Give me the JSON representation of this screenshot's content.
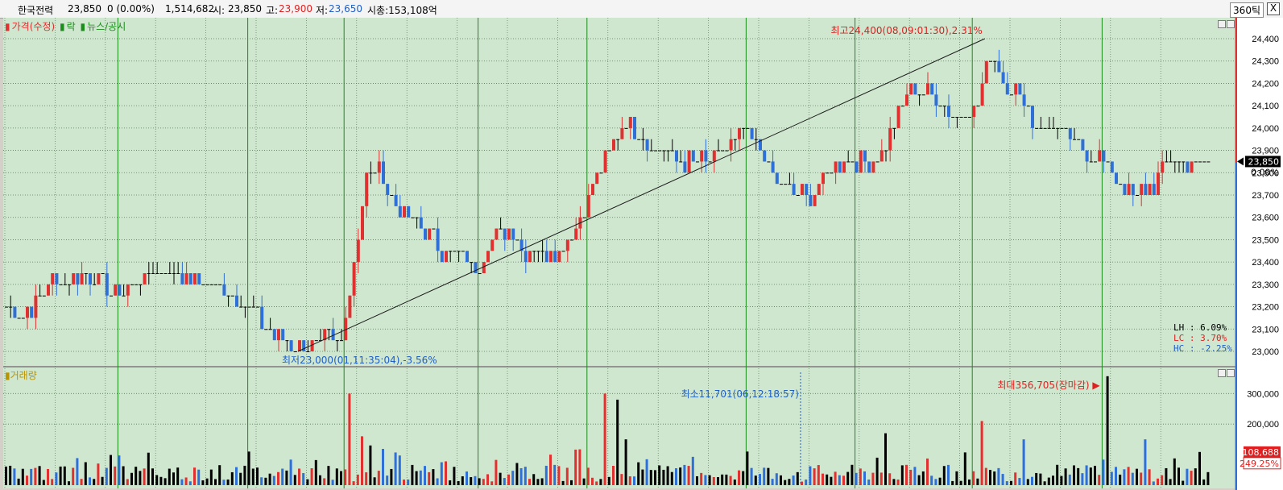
{
  "header": {
    "name": "한국전력",
    "price": "23,850",
    "change": "0 (0.00%)",
    "volume": "1,514,682",
    "open_label": "시:",
    "open": "23,850",
    "high_label": "고:",
    "high": "23,900",
    "low_label": "저:",
    "low": "23,650",
    "mcap": "시총:153,108억",
    "period": "360틱",
    "close_label": "X"
  },
  "legend": {
    "price": "가격(수정)",
    "rak": "락",
    "news": "뉴스/공시",
    "volume": "거래량"
  },
  "colors": {
    "background": "#cfe6cf",
    "up": "#e03030",
    "down": "#2e6fd8",
    "flat": "#000000",
    "session_line": "#1c8c1c",
    "axis_bg": "#ffffff"
  },
  "chart_data": [
    {
      "type": "candlestick",
      "title": "",
      "y_ticks": [
        "24,400",
        "24,300",
        "24,200",
        "24,100",
        "24,000",
        "23,900",
        "23,800",
        "23,700",
        "23,600",
        "23,500",
        "23,400",
        "23,300",
        "23,200",
        "23,100",
        "23,000"
      ],
      "ylim": [
        22950,
        24450
      ],
      "current_price": "23,850",
      "current_change": "0.00%",
      "session_starts": [
        27,
        58,
        81,
        113,
        139,
        177,
        203,
        231,
        262
      ],
      "annotations": {
        "high": "최고24,400(08,09:01:30),2.31%",
        "low": "최저23,000(01,11:35:04),-3.56%"
      },
      "trendline": {
        "from": [
          70,
          23000
        ],
        "to": [
          234,
          24400
        ]
      },
      "stats": {
        "lh": "LH :  6.09%",
        "lc": "LC :  3.70%",
        "hc": "HC : -2.25%"
      },
      "close_path": [
        [
          0,
          23200
        ],
        [
          4,
          23150
        ],
        [
          10,
          23300
        ],
        [
          18,
          23350
        ],
        [
          27,
          23250
        ],
        [
          34,
          23350
        ],
        [
          42,
          23350
        ],
        [
          50,
          23300
        ],
        [
          58,
          23200
        ],
        [
          62,
          23100
        ],
        [
          66,
          23050
        ],
        [
          72,
          23000
        ],
        [
          76,
          23050
        ],
        [
          80,
          23050
        ],
        [
          83,
          23400
        ],
        [
          86,
          23800
        ],
        [
          89,
          23800
        ],
        [
          92,
          23700
        ],
        [
          96,
          23600
        ],
        [
          100,
          23550
        ],
        [
          104,
          23450
        ],
        [
          108,
          23450
        ],
        [
          112,
          23350
        ],
        [
          116,
          23500
        ],
        [
          120,
          23550
        ],
        [
          124,
          23450
        ],
        [
          128,
          23450
        ],
        [
          132,
          23450
        ],
        [
          136,
          23550
        ],
        [
          140,
          23750
        ],
        [
          144,
          23900
        ],
        [
          148,
          24050
        ],
        [
          152,
          23950
        ],
        [
          156,
          23900
        ],
        [
          160,
          23850
        ],
        [
          164,
          23850
        ],
        [
          168,
          23850
        ],
        [
          172,
          23900
        ],
        [
          176,
          24000
        ],
        [
          180,
          23900
        ],
        [
          184,
          23750
        ],
        [
          188,
          23700
        ],
        [
          192,
          23700
        ],
        [
          196,
          23800
        ],
        [
          200,
          23850
        ],
        [
          204,
          23850
        ],
        [
          208,
          23850
        ],
        [
          212,
          24000
        ],
        [
          216,
          24200
        ],
        [
          220,
          24150
        ],
        [
          224,
          24100
        ],
        [
          228,
          24050
        ],
        [
          232,
          24100
        ],
        [
          235,
          24350
        ],
        [
          238,
          24200
        ],
        [
          242,
          24150
        ],
        [
          246,
          24000
        ],
        [
          250,
          24000
        ],
        [
          254,
          23950
        ],
        [
          258,
          23900
        ],
        [
          262,
          23850
        ],
        [
          266,
          23750
        ],
        [
          270,
          23700
        ],
        [
          274,
          23750
        ],
        [
          278,
          23850
        ],
        [
          282,
          23850
        ],
        [
          286,
          23850
        ]
      ]
    },
    {
      "type": "bar",
      "title": "",
      "y_ticks": [
        "300,000",
        "200,000"
      ],
      "ylim": [
        0,
        380000
      ],
      "current_volume": "108,688",
      "current_ratio": "249.25%",
      "annotations": {
        "max": "최대356,705(장마감) ▶",
        "min": "최소11,701(06,12:18:57)"
      },
      "max_index": 263,
      "min_index": 190,
      "spikes": [
        [
          58,
          110000
        ],
        [
          82,
          300000
        ],
        [
          85,
          160000
        ],
        [
          87,
          130000
        ],
        [
          130,
          100000
        ],
        [
          143,
          300000
        ],
        [
          146,
          280000
        ],
        [
          148,
          150000
        ],
        [
          177,
          110000
        ],
        [
          208,
          90000
        ],
        [
          210,
          170000
        ],
        [
          233,
          210000
        ],
        [
          243,
          150000
        ],
        [
          263,
          356705
        ],
        [
          272,
          150000
        ],
        [
          285,
          108688
        ]
      ]
    }
  ]
}
